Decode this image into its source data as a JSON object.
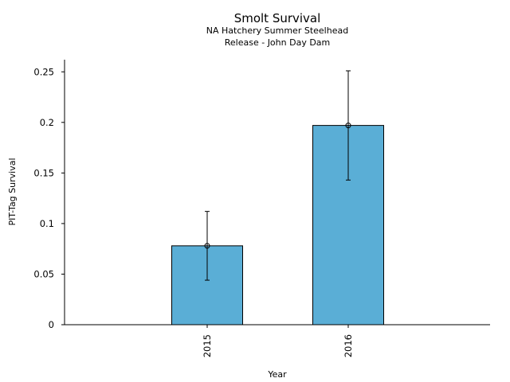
{
  "chart_data": {
    "type": "bar",
    "title": "Smolt Survival",
    "subtitle": [
      "NA Hatchery Summer Steelhead",
      "Release - John Day Dam"
    ],
    "xlabel": "Year",
    "ylabel": "PIT-Tag Survival",
    "categories": [
      "2015",
      "2016"
    ],
    "values": [
      0.078,
      0.197
    ],
    "error_low": [
      0.044,
      0.143
    ],
    "error_high": [
      0.112,
      0.251
    ],
    "ylim": [
      0,
      0.262
    ],
    "yticks": [
      0,
      0.05,
      0.1,
      0.15,
      0.2,
      0.25
    ],
    "ytick_labels": [
      "0",
      "0.05",
      "0.1",
      "0.15",
      "0.2",
      "0.25"
    ],
    "grid": false,
    "bar_color": "#5aaed6",
    "edge_color": "#000000"
  }
}
